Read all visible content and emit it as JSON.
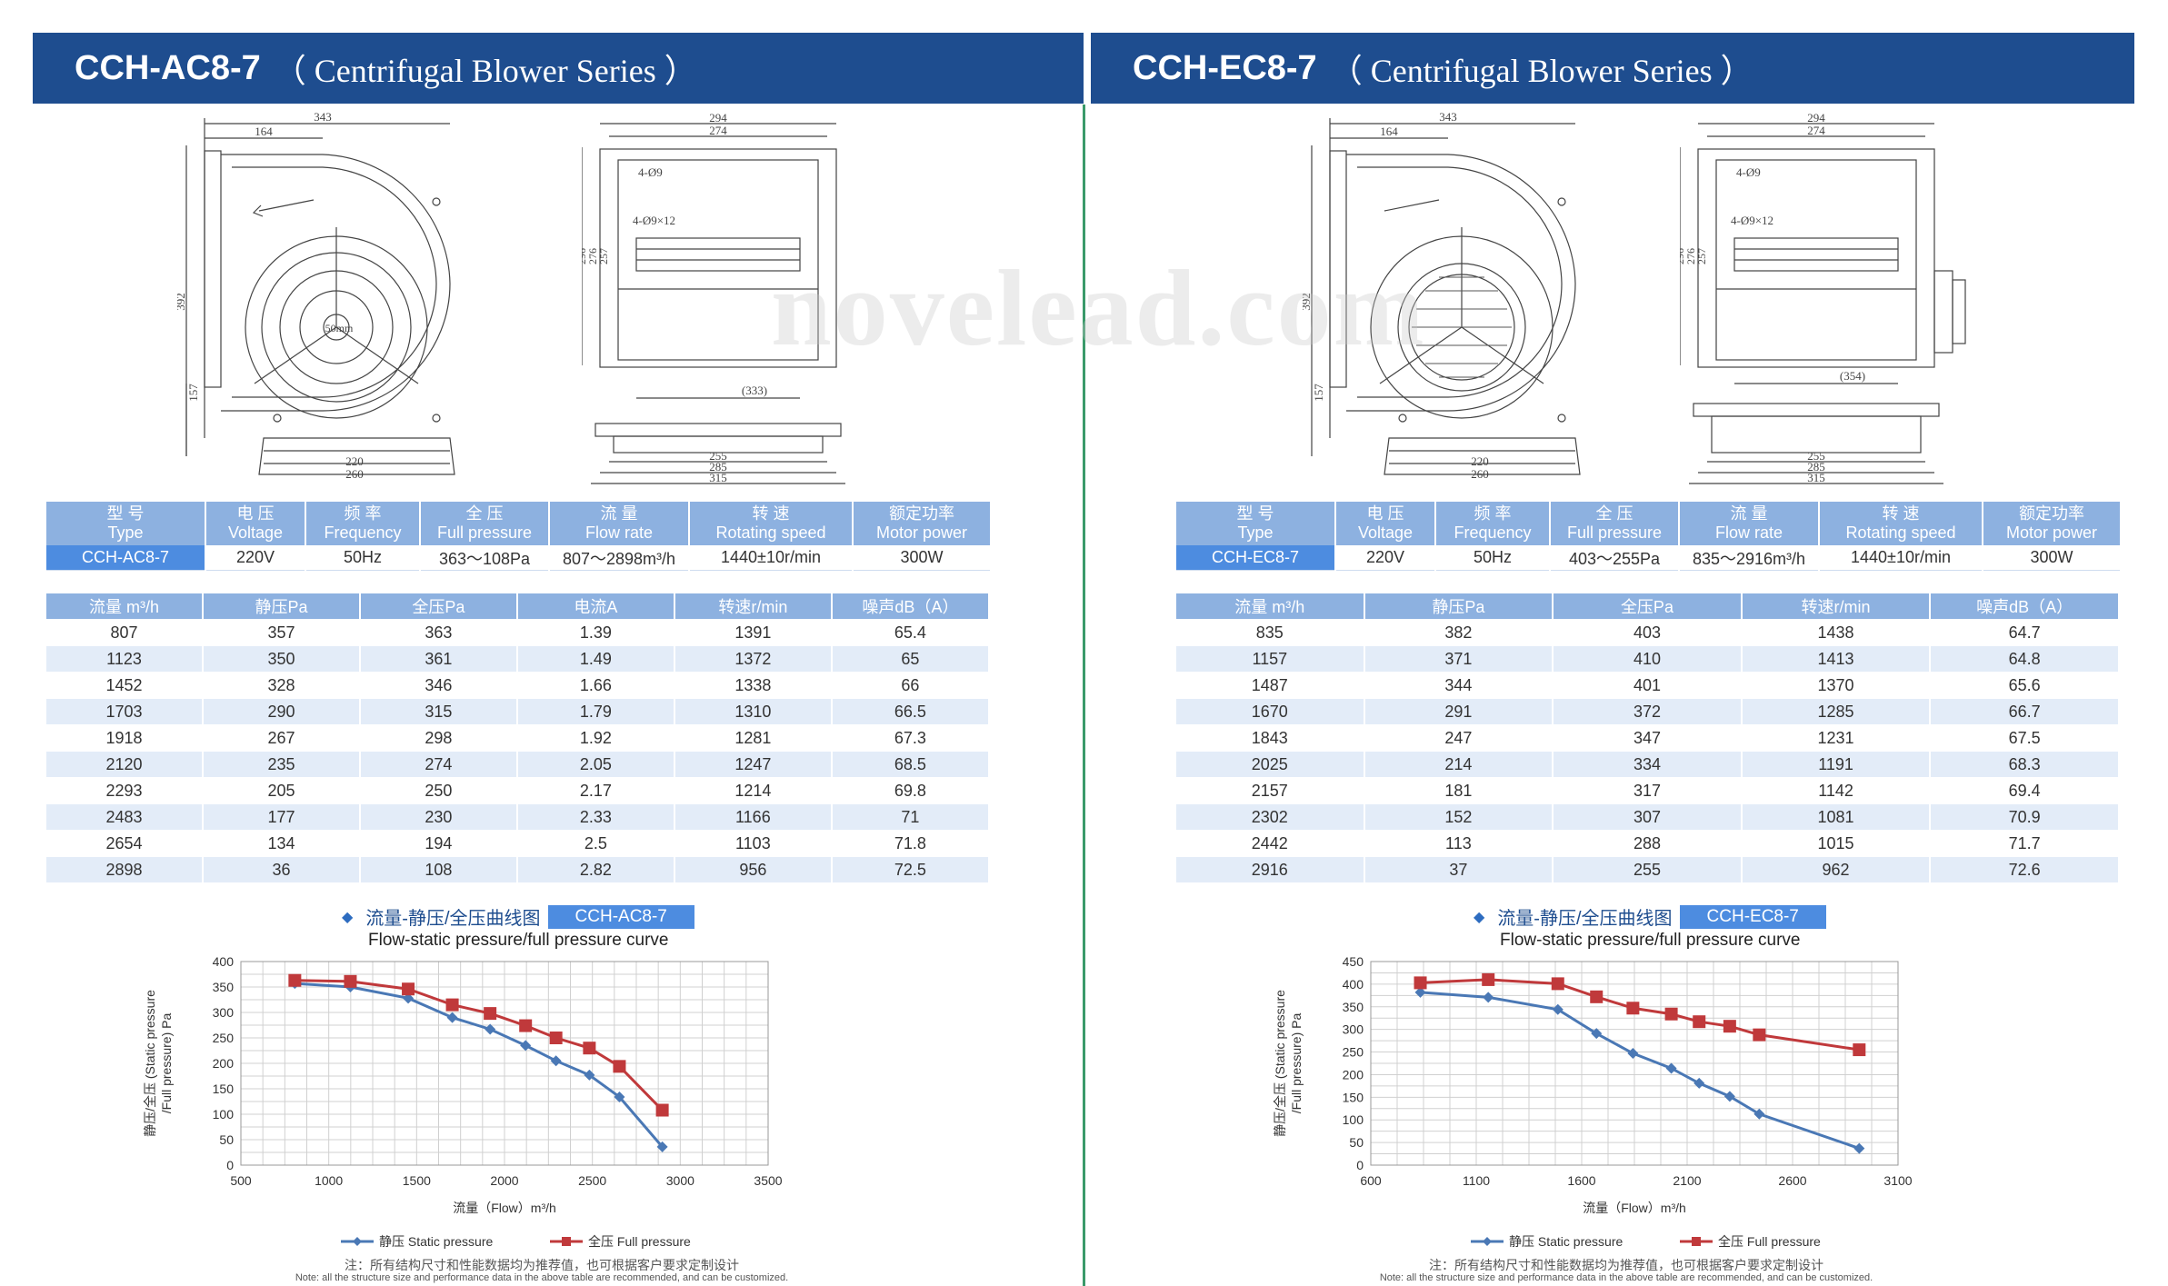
{
  "left": {
    "model": "CCH-AC8-7",
    "series": "（ Centrifugal Blower Series ）",
    "dims_side": {
      "d343": "343",
      "d164": "164",
      "d392": "392",
      "d157": "157",
      "d220": "220",
      "d260": "260",
      "center": "50mm"
    },
    "dims_front": {
      "d294": "294",
      "d274": "274",
      "h1": "4-Ø9",
      "h2": "4-Ø9×12",
      "d296": "296",
      "d276": "276",
      "d257": "257",
      "d333": "(333)",
      "d255": "255",
      "d285": "285",
      "d315": "315"
    },
    "spec_headers": [
      {
        "cn": "型 号",
        "en": "Type"
      },
      {
        "cn": "电 压",
        "en": "Voltage"
      },
      {
        "cn": "频 率",
        "en": "Frequency"
      },
      {
        "cn": "全 压",
        "en": "Full pressure"
      },
      {
        "cn": "流 量",
        "en": "Flow rate"
      },
      {
        "cn": "转 速",
        "en": "Rotating speed"
      },
      {
        "cn": "额定功率",
        "en": "Motor power"
      }
    ],
    "spec_values": [
      "CCH-AC8-7",
      "220V",
      "50Hz",
      "363～108Pa",
      "807～2898m³/h",
      "1440±10r/min",
      "300W"
    ],
    "perf_headers": [
      "流量 m³/h",
      "静压Pa",
      "全压Pa",
      "电流A",
      "转速r/min",
      "噪声dB（A）"
    ],
    "perf_rows": [
      [
        "807",
        "357",
        "363",
        "1.39",
        "1391",
        "65.4"
      ],
      [
        "1123",
        "350",
        "361",
        "1.49",
        "1372",
        "65"
      ],
      [
        "1452",
        "328",
        "346",
        "1.66",
        "1338",
        "66"
      ],
      [
        "1703",
        "290",
        "315",
        "1.79",
        "1310",
        "66.5"
      ],
      [
        "1918",
        "267",
        "298",
        "1.92",
        "1281",
        "67.3"
      ],
      [
        "2120",
        "235",
        "274",
        "2.05",
        "1247",
        "68.5"
      ],
      [
        "2293",
        "205",
        "250",
        "2.17",
        "1214",
        "69.8"
      ],
      [
        "2483",
        "177",
        "230",
        "2.33",
        "1166",
        "71"
      ],
      [
        "2654",
        "134",
        "194",
        "2.5",
        "1103",
        "71.8"
      ],
      [
        "2898",
        "36",
        "108",
        "2.82",
        "956",
        "72.5"
      ]
    ],
    "curve_title_cn": "流量-静压/全压曲线图",
    "curve_title_en": "Flow-static pressure/full pressure curve"
  },
  "right": {
    "model": "CCH-EC8-7",
    "series": "（ Centrifugal Blower Series ）",
    "dims_side": {
      "d343": "343",
      "d164": "164",
      "d392": "392",
      "d157": "157",
      "d220": "220",
      "d260": "260"
    },
    "dims_front": {
      "d294": "294",
      "d274": "274",
      "h1": "4-Ø9",
      "h2": "4-Ø9×12",
      "d296": "296",
      "d276": "276",
      "d257": "257",
      "d354": "(354)",
      "d255": "255",
      "d285": "285",
      "d315": "315"
    },
    "spec_headers": [
      {
        "cn": "型 号",
        "en": "Type"
      },
      {
        "cn": "电 压",
        "en": "Voltage"
      },
      {
        "cn": "频 率",
        "en": "Frequency"
      },
      {
        "cn": "全 压",
        "en": "Full pressure"
      },
      {
        "cn": "流 量",
        "en": "Flow rate"
      },
      {
        "cn": "转 速",
        "en": "Rotating speed"
      },
      {
        "cn": "额定功率",
        "en": "Motor power"
      }
    ],
    "spec_values": [
      "CCH-EC8-7",
      "220V",
      "50Hz",
      "403～255Pa",
      "835～2916m³/h",
      "1440±10r/min",
      "300W"
    ],
    "perf_headers": [
      "流量 m³/h",
      "静压Pa",
      "全压Pa",
      "转速r/min",
      "噪声dB（A）"
    ],
    "perf_rows": [
      [
        "835",
        "382",
        "403",
        "1438",
        "64.7"
      ],
      [
        "1157",
        "371",
        "410",
        "1413",
        "64.8"
      ],
      [
        "1487",
        "344",
        "401",
        "1370",
        "65.6"
      ],
      [
        "1670",
        "291",
        "372",
        "1285",
        "66.7"
      ],
      [
        "1843",
        "247",
        "347",
        "1231",
        "67.5"
      ],
      [
        "2025",
        "214",
        "334",
        "1191",
        "68.3"
      ],
      [
        "2157",
        "181",
        "317",
        "1142",
        "69.4"
      ],
      [
        "2302",
        "152",
        "307",
        "1081",
        "70.9"
      ],
      [
        "2442",
        "113",
        "288",
        "1015",
        "71.7"
      ],
      [
        "2916",
        "37",
        "255",
        "962",
        "72.6"
      ]
    ],
    "curve_title_cn": "流量-静压/全压曲线图",
    "curve_title_en": "Flow-static pressure/full pressure curve"
  },
  "chart_data": [
    {
      "type": "line",
      "xlabel": "流量（Flow）m³/h",
      "ylabel_1": "静压/全压 (Static pressure",
      "ylabel_2": "/Full pressure) Pa",
      "xlim": [
        500,
        3500
      ],
      "xticks": [
        500,
        1000,
        1500,
        2000,
        2500,
        3000,
        3500
      ],
      "ylim": [
        0,
        400
      ],
      "yticks": [
        0,
        50,
        100,
        150,
        200,
        250,
        300,
        350,
        400
      ],
      "grid": true,
      "legend": "bottom",
      "series": [
        {
          "name": "静压 Static pressure",
          "color": "#4a78b5",
          "marker": "diamond",
          "x": [
            807,
            1123,
            1452,
            1703,
            1918,
            2120,
            2293,
            2483,
            2654,
            2898
          ],
          "y": [
            357,
            350,
            328,
            290,
            267,
            235,
            205,
            177,
            134,
            36
          ]
        },
        {
          "name": "全压 Full pressure",
          "color": "#c0393b",
          "marker": "square",
          "x": [
            807,
            1123,
            1452,
            1703,
            1918,
            2120,
            2293,
            2483,
            2654,
            2898
          ],
          "y": [
            363,
            361,
            346,
            315,
            298,
            274,
            250,
            230,
            194,
            108
          ]
        }
      ]
    },
    {
      "type": "line",
      "xlabel": "流量（Flow）m³/h",
      "ylabel_1": "静压/全压 (Static pressure",
      "ylabel_2": "/Full pressure) Pa",
      "xlim": [
        600,
        3100
      ],
      "xticks": [
        600,
        1100,
        1600,
        2100,
        2600,
        3100
      ],
      "ylim": [
        0,
        450
      ],
      "yticks": [
        0,
        50,
        100,
        150,
        200,
        250,
        300,
        350,
        400,
        450
      ],
      "grid": true,
      "legend": "bottom",
      "series": [
        {
          "name": "静压 Static pressure",
          "color": "#4a78b5",
          "marker": "diamond",
          "x": [
            835,
            1157,
            1487,
            1670,
            1843,
            2025,
            2157,
            2302,
            2442,
            2916
          ],
          "y": [
            382,
            371,
            344,
            291,
            247,
            214,
            181,
            152,
            113,
            37
          ]
        },
        {
          "name": "全压 Full pressure",
          "color": "#c0393b",
          "marker": "square",
          "x": [
            835,
            1157,
            1487,
            1670,
            1843,
            2025,
            2157,
            2302,
            2442,
            2916
          ],
          "y": [
            403,
            410,
            401,
            372,
            347,
            334,
            317,
            307,
            288,
            255
          ]
        }
      ]
    }
  ],
  "note_cn": "注：所有结构尺寸和性能数据均为推荐值，也可根据客户要求定制设计",
  "note_en": "Note: all the structure size and performance data in the above table are recommended, and can be customized.",
  "watermark": "novelead.com",
  "colors": {
    "header": "#1e4d8f",
    "th": "#8db1e0",
    "type_cell": "#4d8ce0",
    "divider": "#3a9a6a"
  }
}
